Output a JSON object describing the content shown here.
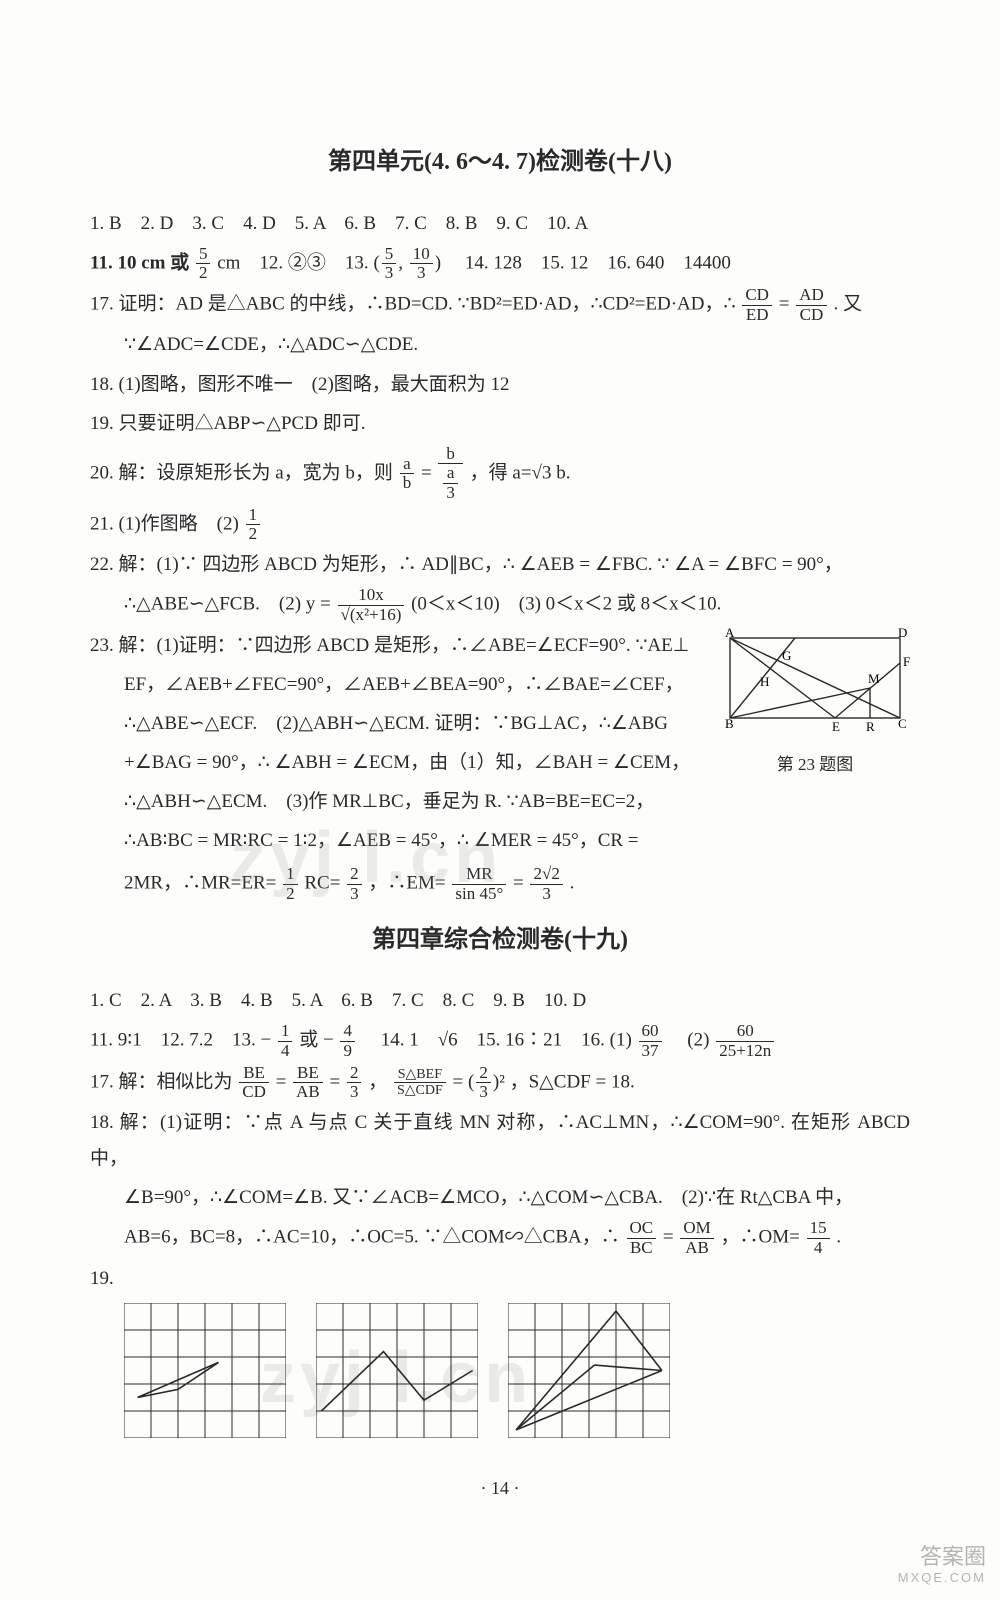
{
  "section18": {
    "title": "第四单元(4. 6～4. 7)检测卷(十八)",
    "mc": "1. B　2. D　3. C　4. D　5. A　6. B　7. C　8. B　9. C　10. A",
    "l11_pre": "11. 10 cm 或 ",
    "l11_frac_n": "5",
    "l11_frac_d": "2",
    "l11_post": " cm　12. ②③　13. ",
    "l13_frac1_n": "5",
    "l13_frac1_d": "3",
    "l13_frac2_n": "10",
    "l13_frac2_d": "3",
    "l13_post": "　14. 128　15. 12　16. 640　14400",
    "q17a": "17. 证明：AD 是△ABC 的中线，∴BD=CD. ∵BD²=ED·AD，∴CD²=ED·AD，∴",
    "q17_f1n": "CD",
    "q17_f1d": "ED",
    "q17_eq": "=",
    "q17_f2n": "AD",
    "q17_f2d": "CD",
    "q17a2": ". 又",
    "q17b": "∵∠ADC=∠CDE，∴△ADC∽△CDE.",
    "q18": "18. (1)图略，图形不唯一　(2)图略，最大面积为 12",
    "q19": "19. 只要证明△ABP∽△PCD 即可.",
    "q20a": "20. 解：设原矩形长为 a，宽为 b，则",
    "q20_f1n": "a",
    "q20_f1d": "b",
    "q20_mid": "=",
    "q20_f2n": "b",
    "q20_f2d_inner_n": "a",
    "q20_f2d_inner_d": "3",
    "q20b": "，得 a=√3 b.",
    "q21a": "21. (1)作图略　(2)",
    "q21_fn": "1",
    "q21_fd": "2",
    "q22a": "22. 解：(1)∵ 四边形 ABCD 为矩形，∴ AD∥BC，∴ ∠AEB = ∠FBC. ∵ ∠A = ∠BFC = 90°，",
    "q22b_pre": "∴△ABE∽△FCB.　(2) y = ",
    "q22b_fn": "10x",
    "q22b_fd": "√(x²+16)",
    "q22b_post": " (0＜x＜10)　(3) 0＜x＜2 或 8＜x＜10.",
    "q23a": "23. 解：(1)证明：∵四边形 ABCD 是矩形，∴∠ABE=∠ECF=90°. ∵AE⊥",
    "q23b": "EF，∠AEB+∠FEC=90°，∠AEB+∠BEA=90°，∴∠BAE=∠CEF，",
    "q23c": "∴△ABE∽△ECF.　(2)△ABH∽△ECM. 证明：∵BG⊥AC，∴∠ABG",
    "q23d": "+∠BAG = 90°，∴ ∠ABH = ∠ECM，由（1）知，∠BAH = ∠CEM，",
    "q23e": "∴△ABH∽△ECM.　(3)作 MR⊥BC，垂足为 R. ∵AB=BE=EC=2，",
    "q23f": "∴AB∶BC = MR∶RC = 1∶2，∠AEB = 45°，∴ ∠MER = 45°，CR =",
    "q23g_pre": "2MR，∴MR=ER=",
    "q23g_f1n": "1",
    "q23g_f1d": "2",
    "q23g_mid1": "RC=",
    "q23g_f2n": "2",
    "q23g_f2d": "3",
    "q23g_mid2": "，∴EM=",
    "q23g_f3n": "MR",
    "q23g_f3d": "sin 45°",
    "q23g_mid3": "=",
    "q23g_f4n": "2√2",
    "q23g_f4d": "3",
    "q23g_end": ".",
    "fig23_caption": "第 23 题图",
    "fig23": {
      "w": 190,
      "h": 110,
      "A": "A",
      "B": "B",
      "C": "C",
      "D": "D",
      "E": "E",
      "F": "F",
      "G": "G",
      "H": "H",
      "M": "M",
      "R": "R"
    }
  },
  "section19": {
    "title": "第四章综合检测卷(十九)",
    "mc": "1. C　2. A　3. B　4. B　5. A　6. B　7. C　8. C　9. B　10. D",
    "l11_pre": "11. 9∶1　12. 7.2　13. −",
    "l13_f1n": "1",
    "l13_f1d": "4",
    "l13_mid": " 或 −",
    "l13_f2n": "4",
    "l13_f2d": "9",
    "l14": "　14. 1　√6　15. 16∶21　16. (1)",
    "l16_f1n": "60",
    "l16_f1d": "37",
    "l16_mid": "　(2)",
    "l16_f2n": "60",
    "l16_f2d": "25+12n",
    "q17_pre": "17. 解：相似比为",
    "q17_f1n": "BE",
    "q17_f1d": "CD",
    "q17_e1": "=",
    "q17_f2n": "BE",
    "q17_f2d": "AB",
    "q17_e2": "=",
    "q17_f3n": "2",
    "q17_f3d": "3",
    "q17_mid": "，",
    "q17_f4n": "S△BEF",
    "q17_f4d": "S△CDF",
    "q17_e3": "=",
    "q17_paren_l": "(",
    "q17_f5n": "2",
    "q17_f5d": "3",
    "q17_paren_r": ")",
    "q17_sq": "²",
    "q17_end": "，S△CDF = 18.",
    "q18a": "18. 解：(1)证明：∵点 A 与点 C 关于直线 MN 对称，∴AC⊥MN，∴∠COM=90°. 在矩形 ABCD 中，",
    "q18b": "∠B=90°，∴∠COM=∠B. 又∵∠ACB=∠MCO，∴△COM∽△CBA.　(2)∵在 Rt△CBA 中，",
    "q18c_pre": "AB=6，BC=8，∴AC=10，∴OC=5. ∵△COM∽△CBA，∴",
    "q18c_f1n": "OC",
    "q18c_f1d": "BC",
    "q18c_e1": "=",
    "q18c_f2n": "OM",
    "q18c_f2d": "AB",
    "q18c_mid": "，∴OM=",
    "q18c_f3n": "15",
    "q18c_f3d": "4",
    "q18c_end": ".",
    "q19_label": "19.",
    "grids": {
      "cell": 27,
      "cols": 6,
      "rows": 5,
      "g1_line": [
        [
          0.5,
          3.5
        ],
        [
          3.5,
          2.2
        ],
        [
          2.0,
          3.2
        ],
        [
          0.5,
          3.5
        ]
      ],
      "g2_line": [
        [
          0.2,
          4.0
        ],
        [
          2.5,
          1.8
        ],
        [
          4.0,
          3.6
        ],
        [
          5.8,
          2.5
        ]
      ],
      "g3_lines": [
        [
          [
            0.3,
            4.7
          ],
          [
            4.0,
            0.3
          ]
        ],
        [
          [
            0.3,
            4.7
          ],
          [
            5.7,
            2.5
          ]
        ],
        [
          [
            4.0,
            0.3
          ],
          [
            5.7,
            2.5
          ]
        ],
        [
          [
            0.3,
            4.7
          ],
          [
            3.2,
            2.3
          ]
        ],
        [
          [
            3.2,
            2.3
          ],
          [
            5.7,
            2.5
          ]
        ]
      ]
    }
  },
  "pagenum": "· 14 ·",
  "watermarks": {
    "text": "zyj l.cn"
  },
  "badge": {
    "line1": "答案圈",
    "line2": "MXQE.COM"
  }
}
